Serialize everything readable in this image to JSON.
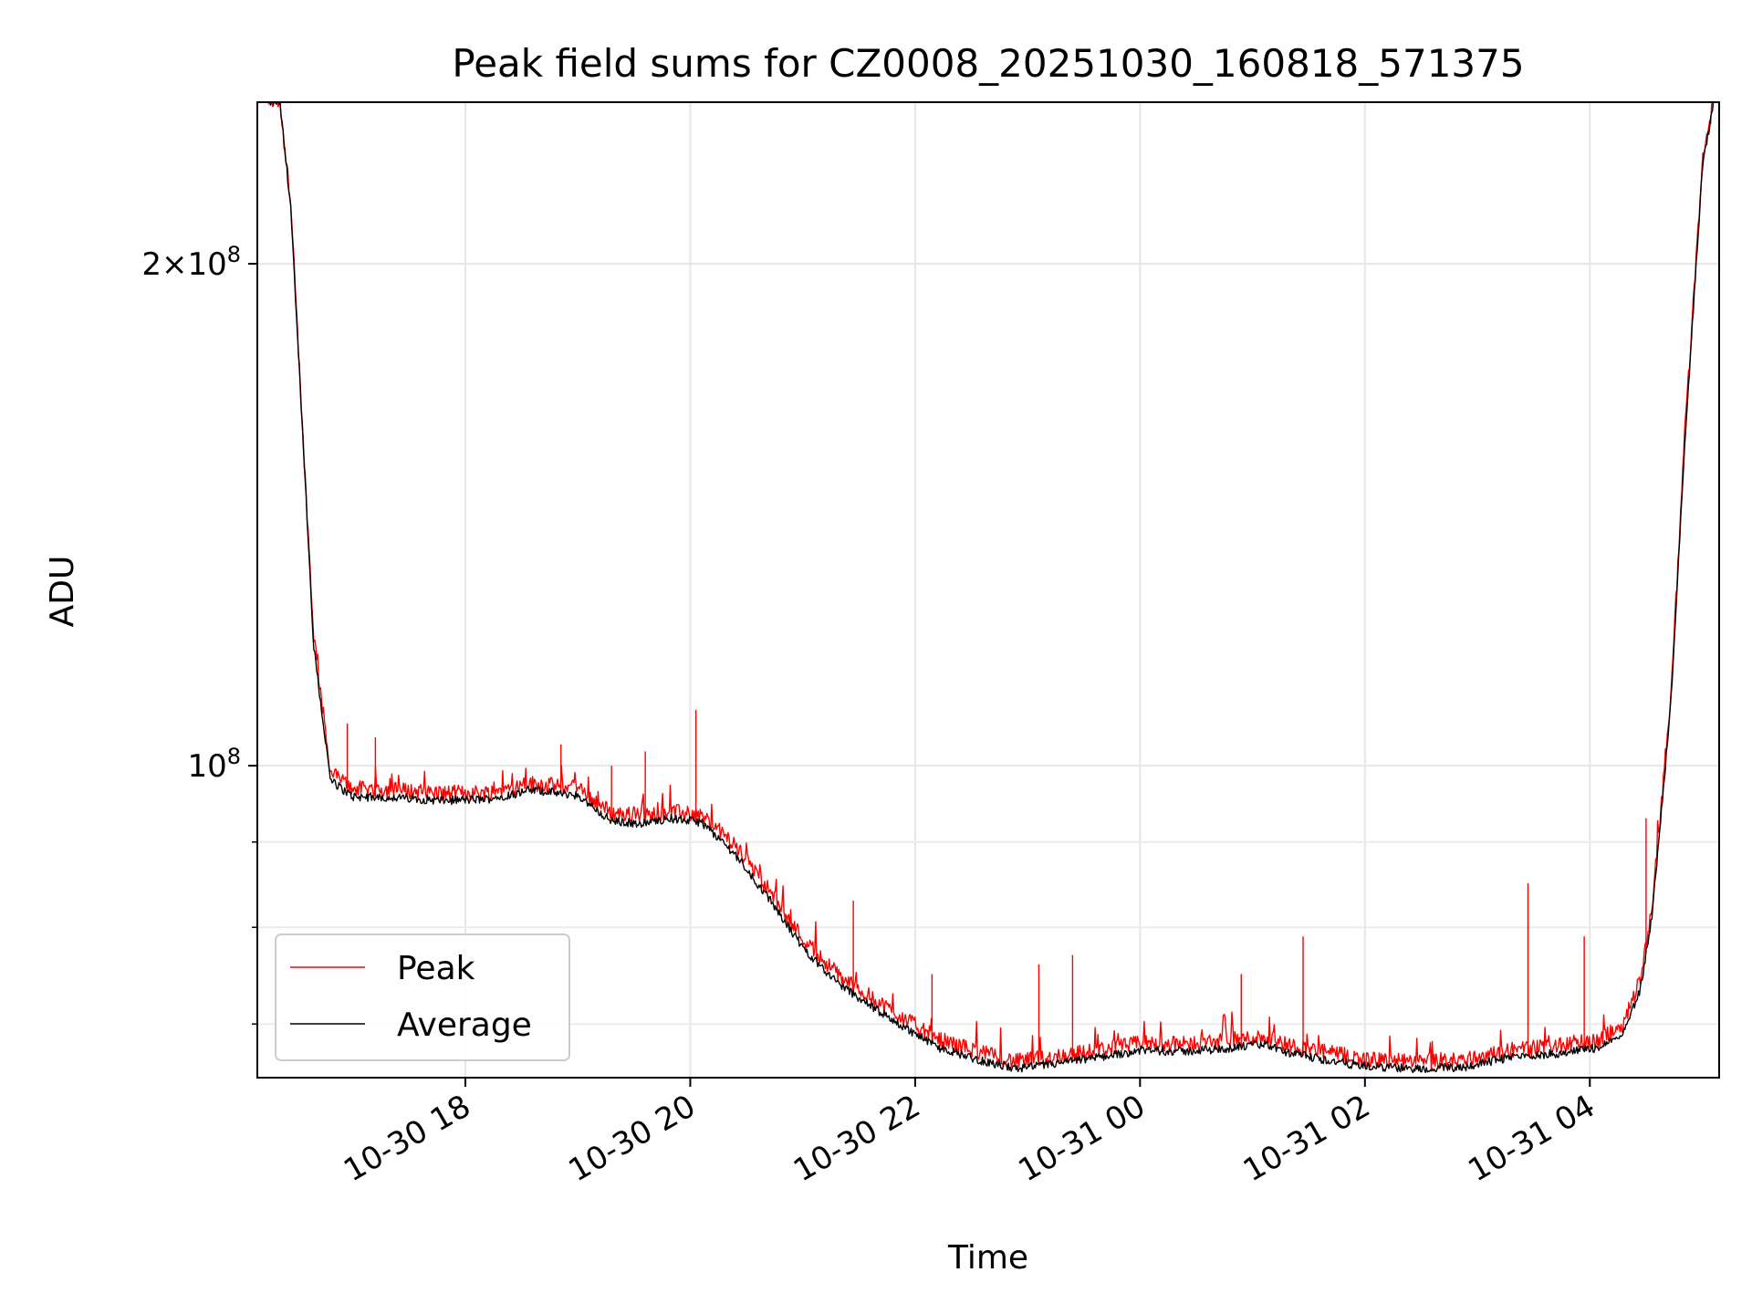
{
  "chart_data": {
    "type": "line",
    "title": "Peak field sums for CZ0008_20251030_160818_571375",
    "xlabel": "Time",
    "ylabel": "ADU",
    "yscale": "log",
    "grid": true,
    "legend_position": "lower-left",
    "x_range_hours": [
      16.15,
      29.15
    ],
    "x_tick_labels": [
      "10-30 18",
      "10-30 20",
      "10-30 22",
      "10-31 00",
      "10-31 02",
      "10-31 04"
    ],
    "x_tick_hours": [
      18,
      20,
      22,
      24,
      26,
      28
    ],
    "ylim": [
      65000000,
      250000000
    ],
    "y_tick_labels": [
      {
        "value": 100000000,
        "mantissa": "",
        "exponent": "8",
        "label": "10^8"
      },
      {
        "value": 200000000,
        "mantissa": "2",
        "exponent": "8",
        "label": "2×10^8"
      }
    ],
    "y_minor_ticks": [
      70000000,
      80000000,
      90000000
    ],
    "series": [
      {
        "name": "Peak",
        "color": "#ff0000",
        "hours": [
          16.35,
          16.45,
          16.55,
          16.65,
          16.8,
          17.0,
          17.4,
          17.8,
          18.2,
          18.6,
          19.0,
          19.3,
          19.6,
          19.8,
          20.1,
          20.4,
          20.7,
          21.0,
          21.3,
          21.6,
          21.9,
          22.2,
          22.6,
          22.9,
          23.2,
          23.6,
          24.0,
          24.4,
          24.8,
          25.1,
          25.3,
          25.6,
          26.0,
          26.5,
          26.9,
          27.3,
          27.7,
          28.1,
          28.3,
          28.45,
          28.55,
          28.62,
          28.72,
          28.85,
          29.0,
          29.1
        ],
        "values": [
          250000000,
          215000000,
          160000000,
          120000000,
          99000000,
          96800000,
          96600000,
          96200000,
          96300000,
          97500000,
          96800000,
          93600000,
          93200000,
          93800000,
          93300000,
          89500000,
          84200000,
          78700000,
          75000000,
          72600000,
          70500000,
          68500000,
          67200000,
          66400000,
          66800000,
          67400000,
          68100000,
          68000000,
          68400000,
          68700000,
          68000000,
          67400000,
          66600000,
          66300000,
          66600000,
          67500000,
          67800000,
          68400000,
          70000000,
          74500000,
          82000000,
          92000000,
          110000000,
          160000000,
          230000000,
          250000000
        ],
        "spikes": [
          {
            "hour": 16.95,
            "value": 106000000
          },
          {
            "hour": 17.2,
            "value": 104000000
          },
          {
            "hour": 18.85,
            "value": 103000000
          },
          {
            "hour": 19.3,
            "value": 100000000
          },
          {
            "hour": 19.6,
            "value": 102000000
          },
          {
            "hour": 20.05,
            "value": 108000000
          },
          {
            "hour": 21.45,
            "value": 83000000
          },
          {
            "hour": 22.15,
            "value": 75000000
          },
          {
            "hour": 23.1,
            "value": 76000000
          },
          {
            "hour": 23.4,
            "value": 77000000
          },
          {
            "hour": 24.9,
            "value": 75000000
          },
          {
            "hour": 25.45,
            "value": 79000000
          },
          {
            "hour": 27.45,
            "value": 85000000
          },
          {
            "hour": 27.95,
            "value": 79000000
          },
          {
            "hour": 28.5,
            "value": 93000000
          }
        ]
      },
      {
        "name": "Average",
        "color": "#000000",
        "hours": [
          16.35,
          16.45,
          16.55,
          16.65,
          16.8,
          17.0,
          17.4,
          17.8,
          18.2,
          18.6,
          19.0,
          19.3,
          19.6,
          19.8,
          20.1,
          20.4,
          20.7,
          21.0,
          21.3,
          21.6,
          21.9,
          22.2,
          22.6,
          22.9,
          23.2,
          23.6,
          24.0,
          24.4,
          24.8,
          25.1,
          25.3,
          25.6,
          26.0,
          26.5,
          26.9,
          27.3,
          27.7,
          28.1,
          28.3,
          28.45,
          28.55,
          28.62,
          28.72,
          28.85,
          29.0,
          29.1
        ],
        "values": [
          250000000,
          215000000,
          160000000,
          118000000,
          98000000,
          95800000,
          95700000,
          95300000,
          95500000,
          96700000,
          96000000,
          92600000,
          92300000,
          93000000,
          92500000,
          88500000,
          83200000,
          77800000,
          74200000,
          71800000,
          69700000,
          67800000,
          66500000,
          65800000,
          66200000,
          66800000,
          67500000,
          67400000,
          67700000,
          68100000,
          67300000,
          66700000,
          66000000,
          65800000,
          66000000,
          66900000,
          67200000,
          67800000,
          69200000,
          73500000,
          81000000,
          91000000,
          109000000,
          158000000,
          228000000,
          250000000
        ]
      }
    ]
  }
}
